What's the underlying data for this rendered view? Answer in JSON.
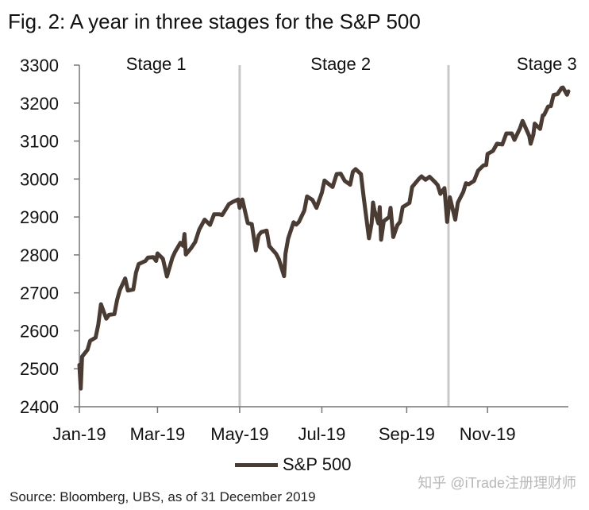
{
  "title": "Fig. 2: A year in three stages for the S&P 500",
  "source": "Source: Bloomberg, UBS, as of 31 December 2019",
  "watermark": "知乎 @iTrade注册理财师",
  "colors": {
    "line": "#4a3b33",
    "divider": "#c8c8c8",
    "axis": "#777777"
  },
  "chart_data": {
    "type": "line",
    "title": "Fig. 2: A year in three stages for the S&P 500",
    "xlabel": "",
    "ylabel": "",
    "ylim": [
      2400,
      3300
    ],
    "yticks": [
      2400,
      2500,
      2600,
      2700,
      2800,
      2900,
      3000,
      3100,
      3200,
      3300
    ],
    "xlim": [
      "2019-01-02",
      "2019-12-31"
    ],
    "xticks": [
      {
        "date": "2019-01-02",
        "label": "Jan-19"
      },
      {
        "date": "2019-03-01",
        "label": "Mar-19"
      },
      {
        "date": "2019-05-01",
        "label": "May-19"
      },
      {
        "date": "2019-07-01",
        "label": "Jul-19"
      },
      {
        "date": "2019-09-02",
        "label": "Sep-19"
      },
      {
        "date": "2019-11-01",
        "label": "Nov-19"
      }
    ],
    "grid": false,
    "legend": "bottom-center",
    "stages": [
      {
        "label": "Stage 1",
        "label_date": "2019-02-28"
      },
      {
        "label": "Stage 2",
        "start_date": "2019-05-01",
        "label_date": "2019-07-15"
      },
      {
        "label": "Stage 3",
        "start_date": "2019-10-03",
        "label_date": "2019-12-15"
      }
    ],
    "series": [
      {
        "name": "S&P 500",
        "points": [
          [
            "2019-01-02",
            2510
          ],
          [
            "2019-01-03",
            2448
          ],
          [
            "2019-01-04",
            2532
          ],
          [
            "2019-01-08",
            2550
          ],
          [
            "2019-01-10",
            2574
          ],
          [
            "2019-01-14",
            2582
          ],
          [
            "2019-01-16",
            2616
          ],
          [
            "2019-01-18",
            2670
          ],
          [
            "2019-01-22",
            2632
          ],
          [
            "2019-01-24",
            2642
          ],
          [
            "2019-01-28",
            2644
          ],
          [
            "2019-01-30",
            2681
          ],
          [
            "2019-02-01",
            2707
          ],
          [
            "2019-02-05",
            2738
          ],
          [
            "2019-02-07",
            2706
          ],
          [
            "2019-02-11",
            2709
          ],
          [
            "2019-02-13",
            2753
          ],
          [
            "2019-02-15",
            2776
          ],
          [
            "2019-02-20",
            2784
          ],
          [
            "2019-02-22",
            2793
          ],
          [
            "2019-02-26",
            2794
          ],
          [
            "2019-02-28",
            2784
          ],
          [
            "2019-03-01",
            2804
          ],
          [
            "2019-03-05",
            2790
          ],
          [
            "2019-03-08",
            2743
          ],
          [
            "2019-03-12",
            2792
          ],
          [
            "2019-03-14",
            2808
          ],
          [
            "2019-03-18",
            2832
          ],
          [
            "2019-03-20",
            2824
          ],
          [
            "2019-03-21",
            2855
          ],
          [
            "2019-03-22",
            2801
          ],
          [
            "2019-03-26",
            2818
          ],
          [
            "2019-03-29",
            2834
          ],
          [
            "2019-04-01",
            2867
          ],
          [
            "2019-04-05",
            2893
          ],
          [
            "2019-04-09",
            2879
          ],
          [
            "2019-04-12",
            2907
          ],
          [
            "2019-04-16",
            2907
          ],
          [
            "2019-04-18",
            2905
          ],
          [
            "2019-04-23",
            2934
          ],
          [
            "2019-04-26",
            2940
          ],
          [
            "2019-04-30",
            2946
          ],
          [
            "2019-05-01",
            2924
          ],
          [
            "2019-05-03",
            2946
          ],
          [
            "2019-05-07",
            2884
          ],
          [
            "2019-05-10",
            2881
          ],
          [
            "2019-05-13",
            2812
          ],
          [
            "2019-05-15",
            2851
          ],
          [
            "2019-05-17",
            2860
          ],
          [
            "2019-05-21",
            2864
          ],
          [
            "2019-05-23",
            2823
          ],
          [
            "2019-05-28",
            2803
          ],
          [
            "2019-05-30",
            2789
          ],
          [
            "2019-06-03",
            2744
          ],
          [
            "2019-06-04",
            2803
          ],
          [
            "2019-06-06",
            2843
          ],
          [
            "2019-06-10",
            2886
          ],
          [
            "2019-06-12",
            2880
          ],
          [
            "2019-06-14",
            2887
          ],
          [
            "2019-06-18",
            2917
          ],
          [
            "2019-06-20",
            2954
          ],
          [
            "2019-06-24",
            2945
          ],
          [
            "2019-06-27",
            2924
          ],
          [
            "2019-07-01",
            2964
          ],
          [
            "2019-07-03",
            2996
          ],
          [
            "2019-07-05",
            2990
          ],
          [
            "2019-07-09",
            2979
          ],
          [
            "2019-07-12",
            3013
          ],
          [
            "2019-07-15",
            3014
          ],
          [
            "2019-07-18",
            2995
          ],
          [
            "2019-07-22",
            2985
          ],
          [
            "2019-07-24",
            3019
          ],
          [
            "2019-07-26",
            3026
          ],
          [
            "2019-07-30",
            3013
          ],
          [
            "2019-08-01",
            2953
          ],
          [
            "2019-08-05",
            2844
          ],
          [
            "2019-08-07",
            2884
          ],
          [
            "2019-08-08",
            2938
          ],
          [
            "2019-08-09",
            2918
          ],
          [
            "2019-08-12",
            2883
          ],
          [
            "2019-08-13",
            2926
          ],
          [
            "2019-08-14",
            2840
          ],
          [
            "2019-08-16",
            2889
          ],
          [
            "2019-08-20",
            2900
          ],
          [
            "2019-08-21",
            2924
          ],
          [
            "2019-08-23",
            2847
          ],
          [
            "2019-08-26",
            2878
          ],
          [
            "2019-08-28",
            2887
          ],
          [
            "2019-08-30",
            2926
          ],
          [
            "2019-09-04",
            2937
          ],
          [
            "2019-09-06",
            2979
          ],
          [
            "2019-09-11",
            3000
          ],
          [
            "2019-09-13",
            3007
          ],
          [
            "2019-09-16",
            2998
          ],
          [
            "2019-09-19",
            3006
          ],
          [
            "2019-09-23",
            2992
          ],
          [
            "2019-09-25",
            2984
          ],
          [
            "2019-09-27",
            2961
          ],
          [
            "2019-09-30",
            2976
          ],
          [
            "2019-10-02",
            2887
          ],
          [
            "2019-10-04",
            2952
          ],
          [
            "2019-10-08",
            2893
          ],
          [
            "2019-10-10",
            2938
          ],
          [
            "2019-10-14",
            2966
          ],
          [
            "2019-10-16",
            2989
          ],
          [
            "2019-10-18",
            2986
          ],
          [
            "2019-10-22",
            2995
          ],
          [
            "2019-10-25",
            3022
          ],
          [
            "2019-10-29",
            3036
          ],
          [
            "2019-10-31",
            3037
          ],
          [
            "2019-11-01",
            3066
          ],
          [
            "2019-11-05",
            3074
          ],
          [
            "2019-11-08",
            3093
          ],
          [
            "2019-11-12",
            3091
          ],
          [
            "2019-11-15",
            3120
          ],
          [
            "2019-11-19",
            3120
          ],
          [
            "2019-11-21",
            3103
          ],
          [
            "2019-11-25",
            3133
          ],
          [
            "2019-11-27",
            3153
          ],
          [
            "2019-12-02",
            3113
          ],
          [
            "2019-12-03",
            3093
          ],
          [
            "2019-12-05",
            3117
          ],
          [
            "2019-12-06",
            3146
          ],
          [
            "2019-12-10",
            3132
          ],
          [
            "2019-12-12",
            3168
          ],
          [
            "2019-12-13",
            3169
          ],
          [
            "2019-12-16",
            3191
          ],
          [
            "2019-12-18",
            3192
          ],
          [
            "2019-12-20",
            3221
          ],
          [
            "2019-12-23",
            3224
          ],
          [
            "2019-12-26",
            3240
          ],
          [
            "2019-12-27",
            3241
          ],
          [
            "2019-12-30",
            3222
          ],
          [
            "2019-12-31",
            3231
          ]
        ]
      }
    ]
  }
}
